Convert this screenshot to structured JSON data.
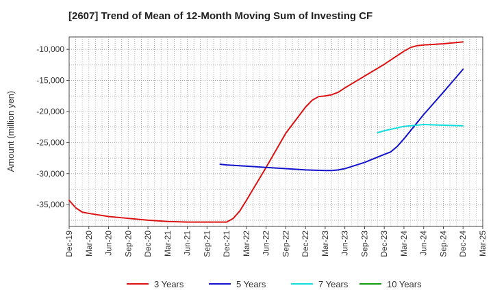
{
  "chart_data": {
    "type": "line",
    "title": "[2607]  Trend of Mean of 12-Month Moving Sum of Investing CF",
    "xlabel": "",
    "ylabel": "Amount (million yen)",
    "ylim": [
      -38500,
      -8000
    ],
    "yticks": [
      -35000,
      -30000,
      -25000,
      -20000,
      -15000,
      -10000
    ],
    "ytick_labels": [
      "-35,000",
      "-30,000",
      "-25,000",
      "-20,000",
      "-15,000",
      "-10,000"
    ],
    "x_start": "Dec-19",
    "x_months": 63,
    "xtick_labels": [
      "Dec-19",
      "Mar-20",
      "Jun-20",
      "Sep-20",
      "Dec-20",
      "Mar-21",
      "Jun-21",
      "Sep-21",
      "Dec-21",
      "Mar-22",
      "Jun-22",
      "Sep-22",
      "Dec-22",
      "Mar-23",
      "Jun-23",
      "Sep-23",
      "Dec-23",
      "Mar-24",
      "Jun-24",
      "Sep-24",
      "Dec-24",
      "Mar-25"
    ],
    "grid": true,
    "legend_position": "bottom",
    "series": [
      {
        "name": "3 Years",
        "color": "#dd1111",
        "x": [
          "Dec-19",
          "Jan-20",
          "Feb-20",
          "Mar-20",
          "Jun-20",
          "Sep-20",
          "Dec-20",
          "Mar-21",
          "Jun-21",
          "Sep-21",
          "Nov-21",
          "Dec-21",
          "Jan-22",
          "Feb-22",
          "Mar-22",
          "Jun-22",
          "Sep-22",
          "Dec-22",
          "Jan-23",
          "Feb-23",
          "Mar-23",
          "Apr-23",
          "May-23",
          "Jun-23",
          "Sep-23",
          "Dec-23",
          "Mar-24",
          "Apr-24",
          "May-24",
          "Jun-24",
          "Sep-24",
          "Dec-24"
        ],
        "values": [
          -34300,
          -35500,
          -36200,
          -36400,
          -36900,
          -37200,
          -37500,
          -37700,
          -37800,
          -37800,
          -37800,
          -37800,
          -37200,
          -36000,
          -34300,
          -29000,
          -23500,
          -19300,
          -18200,
          -17600,
          -17500,
          -17300,
          -16900,
          -16200,
          -14300,
          -12400,
          -10300,
          -9700,
          -9400,
          -9300,
          -9100,
          -8800
        ]
      },
      {
        "name": "5 Years",
        "color": "#1111cc",
        "x": [
          "Nov-21",
          "Dec-21",
          "Mar-22",
          "Jun-22",
          "Sep-22",
          "Dec-22",
          "Mar-23",
          "Apr-23",
          "May-23",
          "Jun-23",
          "Sep-23",
          "Dec-23",
          "Jan-24",
          "Feb-24",
          "Mar-24",
          "Jun-24",
          "Sep-24",
          "Dec-24"
        ],
        "values": [
          -28500,
          -28600,
          -28800,
          -29000,
          -29200,
          -29400,
          -29500,
          -29500,
          -29400,
          -29200,
          -28200,
          -26900,
          -26500,
          -25600,
          -24400,
          -20500,
          -16900,
          -13200
        ]
      },
      {
        "name": "7 Years",
        "color": "#11dddd",
        "x": [
          "Nov-23",
          "Dec-23",
          "Mar-24",
          "Jun-24",
          "Sep-24",
          "Dec-24"
        ],
        "values": [
          -23400,
          -23100,
          -22400,
          -22100,
          -22200,
          -22300
        ]
      },
      {
        "name": "10 Years",
        "color": "#119911",
        "x": [],
        "values": []
      }
    ]
  }
}
